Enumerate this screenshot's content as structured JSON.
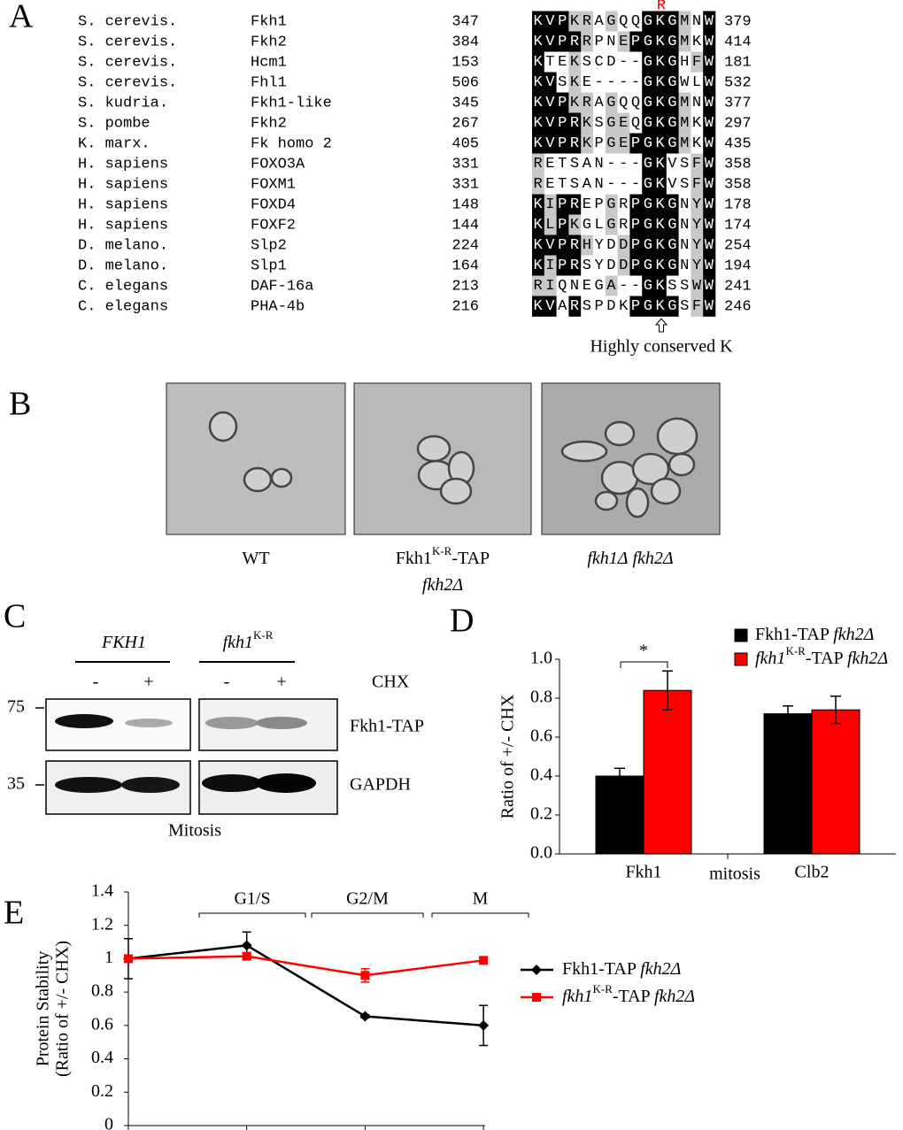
{
  "panel_labels": [
    "A",
    "B",
    "C",
    "D",
    "E"
  ],
  "alignment": {
    "marker": "R",
    "note": "Highly conserved K",
    "rows": [
      [
        "S. cerevis.",
        "Fkh1",
        "347",
        "KVPKRAGQQGKGMNW",
        "379"
      ],
      [
        "S. cerevis.",
        "Fkh2",
        "384",
        "KVPRRPNEPGKGMKW",
        "414"
      ],
      [
        "S. cerevis.",
        "Hcm1",
        "153",
        "KTEKSCD--GKGHFW",
        "181"
      ],
      [
        "S. cerevis.",
        "Fhl1",
        "506",
        "KVSKE----GKGWLW",
        "532"
      ],
      [
        "S. kudria.",
        "Fkh1-like",
        "345",
        "KVPKRAGQQGKGMNW",
        "377"
      ],
      [
        "S. pombe",
        "Fkh2",
        "267",
        "KVPRKSGEQGKGMKW",
        "297"
      ],
      [
        "K. marx.",
        "Fk homo 2",
        "405",
        "KVPRKPGEPGKGMKW",
        "435"
      ],
      [
        "H. sapiens",
        "FOXO3A",
        "331",
        "RETSAN---GKVSFW",
        "358"
      ],
      [
        "H. sapiens",
        "FOXM1",
        "331",
        "RETSAN---GKVSFW",
        "358"
      ],
      [
        "H. sapiens",
        "FOXD4",
        "148",
        "KIPREPGRPGKGNYW",
        "178"
      ],
      [
        "H. sapiens",
        "FOXF2",
        "144",
        "KLPKGLGRPGKGNYW",
        "174"
      ],
      [
        "D. melano.",
        "Slp2",
        "224",
        "KVPRHYDDPGKGNYW",
        "254"
      ],
      [
        "D. melano.",
        "Slp1",
        "164",
        "KIPRSYDDPGKGNYW",
        "194"
      ],
      [
        "C. elegans",
        "DAF-16a",
        "213",
        "RIQNEGA--GKSSWW",
        "241"
      ],
      [
        "C. elegans",
        "PHA-4b",
        "216",
        "KVARSPDKPGKGSFW",
        "246"
      ]
    ]
  },
  "micrographs": {
    "labels": [
      [
        "WT"
      ],
      [
        "Fkh1K-R-TAP",
        "fkh2Δ"
      ],
      [
        "fkh1Δ fkh2Δ"
      ]
    ]
  },
  "blot": {
    "groups": [
      "FKH1",
      "fkh1K-R"
    ],
    "treatments": [
      "-",
      "+",
      "-",
      "+"
    ],
    "treatment_label": "CHX",
    "markers": [
      "75",
      "35"
    ],
    "rows": [
      "Fkh1-TAP",
      "GAPDH"
    ],
    "caption": "Mitosis"
  },
  "chart_data": [
    {
      "type": "bar",
      "categories": [
        "Fkh1",
        "Clb2"
      ],
      "x_label": "mitosis",
      "y_label": "Ratio of +/- CHX",
      "ylim": [
        0,
        1
      ],
      "yticks": [
        {
          "value": 0,
          "label": "0.0"
        },
        {
          "value": 0.2,
          "label": "0.2"
        },
        {
          "value": 0.4,
          "label": "0.4"
        },
        {
          "value": 0.6,
          "label": "0.6"
        },
        {
          "value": 0.8,
          "label": "0.8"
        },
        {
          "value": 1,
          "label": "1.0"
        }
      ],
      "series": [
        {
          "name": "Fkh1-TAP fkh2Δ",
          "color": "#000000",
          "values": [
            0.4,
            0.72
          ],
          "errors": [
            0.04,
            0.04
          ]
        },
        {
          "name": "fkh1K-R-TAP fkh2Δ",
          "color": "#ff0000",
          "values": [
            0.84,
            0.74
          ],
          "errors": [
            0.1,
            0.07
          ]
        }
      ],
      "annotations": [
        "*"
      ]
    },
    {
      "type": "line",
      "categories": [
        null,
        null,
        null,
        null
      ],
      "y_label": [
        "Protein Stability",
        "(Ratio of +/- CHX)"
      ],
      "ylim": [
        0,
        1.4
      ],
      "yticks": [
        0,
        0.2,
        0.4,
        0.6,
        0.8,
        1,
        1.2,
        1.4
      ],
      "phases": [
        "G1/S",
        "G2/M",
        "M"
      ],
      "series": [
        {
          "name": "Fkh1-TAP fkh2Δ",
          "color": "#000000",
          "values": [
            1,
            1.08,
            0.655,
            0.6
          ],
          "errors": [
            0.12,
            0.08,
            0.01,
            0.12
          ]
        },
        {
          "name": "fkh1K-R-TAP fkh2Δ",
          "color": "#ff0000",
          "values": [
            1,
            1.015,
            0.9,
            0.99
          ],
          "errors": [
            0.02,
            0.02,
            0.04,
            0.02
          ]
        }
      ]
    }
  ]
}
